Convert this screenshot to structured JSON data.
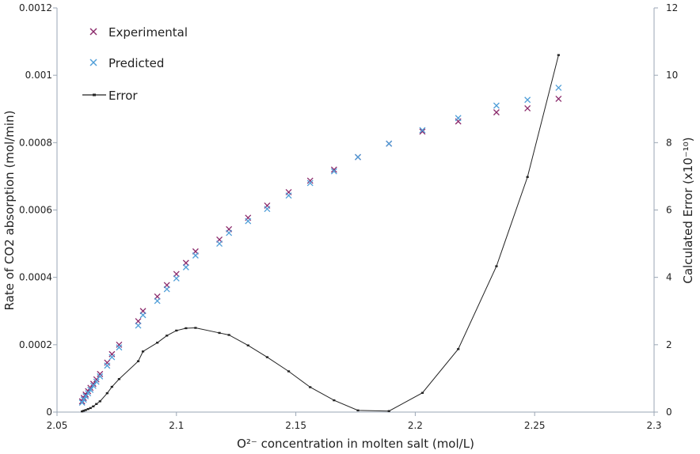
{
  "chart_data": {
    "type": "scatter",
    "xlabel": "O²⁻ concentration in molten salt (mol/L)",
    "ylabel": "Rate of CO2 absorption (mol/min)",
    "y2label": "Calculated Error (x10⁻¹⁰)",
    "xlim": [
      2.05,
      2.3
    ],
    "ylim": [
      0,
      0.0012
    ],
    "y2lim": [
      0,
      12
    ],
    "x_ticks": [
      "2.05",
      "2.1",
      "2.15",
      "2.2",
      "2.25",
      "2.3"
    ],
    "x_tick_values": [
      2.05,
      2.1,
      2.15,
      2.2,
      2.25,
      2.3
    ],
    "y_ticks": [
      "0",
      "0.0002",
      "0.0004",
      "0.0006",
      "0.0008",
      "0.001",
      "0.0012"
    ],
    "y_tick_values": [
      0,
      0.0002,
      0.0004,
      0.0006,
      0.0008,
      0.001,
      0.0012
    ],
    "y2_ticks": [
      "0",
      "2",
      "4",
      "6",
      "8",
      "10",
      "12"
    ],
    "y2_tick_values": [
      0,
      2,
      4,
      6,
      8,
      10,
      12
    ],
    "legend_position": "top-left",
    "grid": false,
    "series": [
      {
        "name": "Experimental",
        "marker": "x",
        "color": "#8b2a6b",
        "axis": "left",
        "points": [
          [
            2.0605,
            3.2e-05
          ],
          [
            2.0612,
            4.2e-05
          ],
          [
            2.062,
            5.2e-05
          ],
          [
            2.063,
            6.2e-05
          ],
          [
            2.064,
            7.2e-05
          ],
          [
            2.0652,
            8.4e-05
          ],
          [
            2.0665,
            9.7e-05
          ],
          [
            2.068,
            0.000113
          ],
          [
            2.071,
            0.000147
          ],
          [
            2.073,
            0.000172
          ],
          [
            2.076,
            0.0002
          ],
          [
            2.084,
            0.00027
          ],
          [
            2.086,
            0.0003
          ],
          [
            2.092,
            0.000343
          ],
          [
            2.096,
            0.000377
          ],
          [
            2.1,
            0.00041
          ],
          [
            2.104,
            0.000443
          ],
          [
            2.108,
            0.000477
          ],
          [
            2.118,
            0.000512
          ],
          [
            2.122,
            0.000543
          ],
          [
            2.13,
            0.000577
          ],
          [
            2.138,
            0.000613
          ],
          [
            2.147,
            0.000653
          ],
          [
            2.156,
            0.000687
          ],
          [
            2.166,
            0.00072
          ],
          [
            2.176,
            0.000757
          ],
          [
            2.189,
            0.000797
          ],
          [
            2.203,
            0.000833
          ],
          [
            2.218,
            0.000863
          ],
          [
            2.234,
            0.00089
          ],
          [
            2.247,
            0.000902
          ],
          [
            2.26,
            0.00093
          ]
        ]
      },
      {
        "name": "Predicted",
        "marker": "x",
        "color": "#4f9ed8",
        "axis": "left",
        "points": [
          [
            2.0605,
            2.8e-05
          ],
          [
            2.0612,
            3.7e-05
          ],
          [
            2.062,
            4.7e-05
          ],
          [
            2.063,
            5.6e-05
          ],
          [
            2.064,
            6.6e-05
          ],
          [
            2.0652,
            7.8e-05
          ],
          [
            2.0665,
            9e-05
          ],
          [
            2.068,
            0.000106
          ],
          [
            2.071,
            0.000138
          ],
          [
            2.073,
            0.000163
          ],
          [
            2.076,
            0.000192
          ],
          [
            2.084,
            0.000257
          ],
          [
            2.086,
            0.000288
          ],
          [
            2.092,
            0.00033
          ],
          [
            2.096,
            0.000365
          ],
          [
            2.1,
            0.000397
          ],
          [
            2.104,
            0.00043
          ],
          [
            2.108,
            0.000465
          ],
          [
            2.118,
            0.0005
          ],
          [
            2.122,
            0.000532
          ],
          [
            2.13,
            0.000567
          ],
          [
            2.138,
            0.000603
          ],
          [
            2.147,
            0.000643
          ],
          [
            2.156,
            0.00068
          ],
          [
            2.166,
            0.000715
          ],
          [
            2.176,
            0.000757
          ],
          [
            2.189,
            0.000797
          ],
          [
            2.203,
            0.000837
          ],
          [
            2.218,
            0.000873
          ],
          [
            2.234,
            0.00091
          ],
          [
            2.247,
            0.000927
          ],
          [
            2.26,
            0.000963
          ]
        ]
      },
      {
        "name": "Error",
        "marker": "line",
        "color": "#222222",
        "axis": "right",
        "points": [
          [
            2.0605,
            0.02
          ],
          [
            2.0612,
            0.04
          ],
          [
            2.062,
            0.06
          ],
          [
            2.063,
            0.09
          ],
          [
            2.064,
            0.12
          ],
          [
            2.0652,
            0.17
          ],
          [
            2.0665,
            0.24
          ],
          [
            2.068,
            0.32
          ],
          [
            2.071,
            0.56
          ],
          [
            2.073,
            0.75
          ],
          [
            2.076,
            0.98
          ],
          [
            2.084,
            1.51
          ],
          [
            2.086,
            1.8
          ],
          [
            2.092,
            2.06
          ],
          [
            2.096,
            2.27
          ],
          [
            2.1,
            2.42
          ],
          [
            2.104,
            2.49
          ],
          [
            2.108,
            2.5
          ],
          [
            2.118,
            2.35
          ],
          [
            2.122,
            2.29
          ],
          [
            2.13,
            1.98
          ],
          [
            2.138,
            1.63
          ],
          [
            2.147,
            1.21
          ],
          [
            2.156,
            0.74
          ],
          [
            2.166,
            0.35
          ],
          [
            2.176,
            0.05
          ],
          [
            2.189,
            0.03
          ],
          [
            2.203,
            0.57
          ],
          [
            2.218,
            1.87
          ],
          [
            2.234,
            4.33
          ],
          [
            2.247,
            6.98
          ],
          [
            2.26,
            10.6
          ]
        ]
      }
    ]
  }
}
